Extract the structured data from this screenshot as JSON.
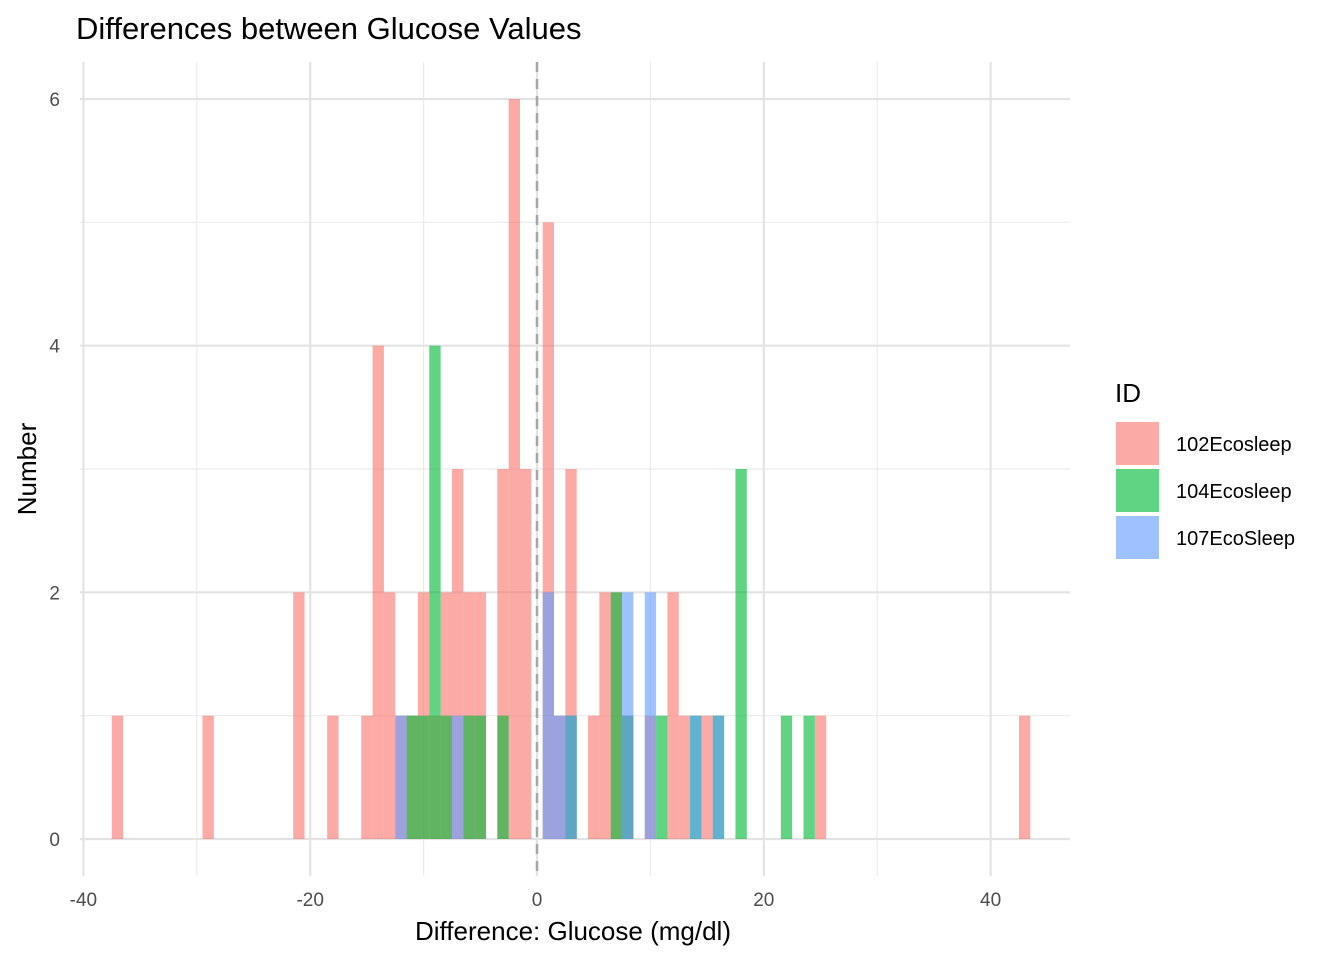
{
  "chart_data": {
    "type": "bar",
    "subtype": "overlaid-histogram",
    "title": "Differences between Glucose Values",
    "xlabel": "Difference: Glucose (mg/dl)",
    "ylabel": "Number",
    "xlim": [
      -40.3,
      47
    ],
    "ylim": [
      -0.3,
      6.3
    ],
    "x_ticks": [
      -40,
      -20,
      0,
      20,
      40
    ],
    "y_ticks": [
      0,
      2,
      4,
      6
    ],
    "bin_width": 1,
    "grid": true,
    "reference_line": {
      "x": 0,
      "style": "dashed",
      "color": "#a6a6a6"
    },
    "legend": {
      "title": "ID",
      "position": "right"
    },
    "series": [
      {
        "name": "102Ecosleep",
        "color": "#F8766D",
        "bins": [
          {
            "x": -37,
            "count": 1
          },
          {
            "x": -29,
            "count": 1
          },
          {
            "x": -21,
            "count": 2
          },
          {
            "x": -18,
            "count": 1
          },
          {
            "x": -15,
            "count": 1
          },
          {
            "x": -14,
            "count": 4
          },
          {
            "x": -13,
            "count": 2
          },
          {
            "x": -12,
            "count": 1
          },
          {
            "x": -11,
            "count": 1
          },
          {
            "x": -10,
            "count": 2
          },
          {
            "x": -9,
            "count": 1
          },
          {
            "x": -8,
            "count": 2
          },
          {
            "x": -7,
            "count": 3
          },
          {
            "x": -6,
            "count": 2
          },
          {
            "x": -5,
            "count": 2
          },
          {
            "x": -3,
            "count": 3
          },
          {
            "x": -2,
            "count": 6
          },
          {
            "x": -1,
            "count": 3
          },
          {
            "x": 1,
            "count": 5
          },
          {
            "x": 2,
            "count": 1
          },
          {
            "x": 3,
            "count": 3
          },
          {
            "x": 5,
            "count": 1
          },
          {
            "x": 6,
            "count": 2
          },
          {
            "x": 7,
            "count": 2
          },
          {
            "x": 8,
            "count": 1
          },
          {
            "x": 10,
            "count": 1
          },
          {
            "x": 12,
            "count": 2
          },
          {
            "x": 13,
            "count": 1
          },
          {
            "x": 15,
            "count": 1
          },
          {
            "x": 25,
            "count": 1
          },
          {
            "x": 43,
            "count": 1
          }
        ]
      },
      {
        "name": "104Ecosleep",
        "color": "#00BA38",
        "bins": [
          {
            "x": -11,
            "count": 1
          },
          {
            "x": -10,
            "count": 1
          },
          {
            "x": -9,
            "count": 4
          },
          {
            "x": -8,
            "count": 1
          },
          {
            "x": -6,
            "count": 1
          },
          {
            "x": -5,
            "count": 1
          },
          {
            "x": -3,
            "count": 1
          },
          {
            "x": 3,
            "count": 1
          },
          {
            "x": 7,
            "count": 2
          },
          {
            "x": 8,
            "count": 1
          },
          {
            "x": 11,
            "count": 1
          },
          {
            "x": 14,
            "count": 1
          },
          {
            "x": 16,
            "count": 1
          },
          {
            "x": 18,
            "count": 3
          },
          {
            "x": 22,
            "count": 1
          },
          {
            "x": 24,
            "count": 1
          }
        ]
      },
      {
        "name": "107EcoSleep",
        "color": "#619CFF",
        "bins": [
          {
            "x": -12,
            "count": 1
          },
          {
            "x": -7,
            "count": 1
          },
          {
            "x": 1,
            "count": 2
          },
          {
            "x": 2,
            "count": 1
          },
          {
            "x": 3,
            "count": 1
          },
          {
            "x": 8,
            "count": 2
          },
          {
            "x": 10,
            "count": 2
          },
          {
            "x": 14,
            "count": 1
          },
          {
            "x": 16,
            "count": 1
          }
        ]
      }
    ]
  }
}
